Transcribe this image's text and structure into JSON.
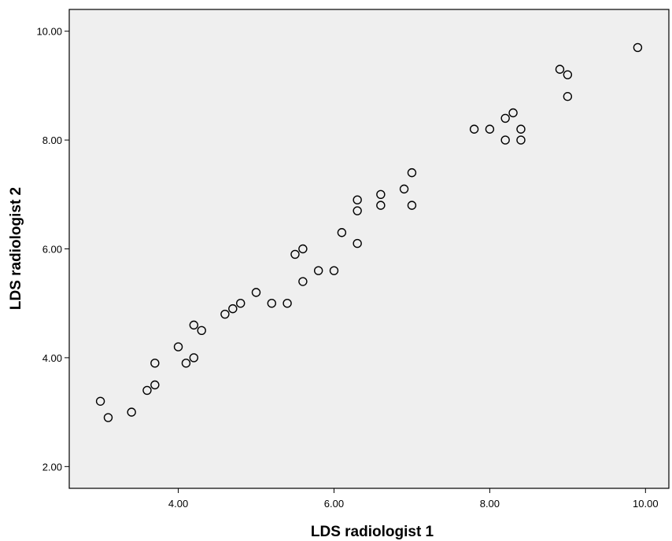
{
  "chart_data": {
    "type": "scatter",
    "title": "",
    "xlabel": "LDS radiologist 1",
    "ylabel": "LDS radiologist 2",
    "xlim": [
      2.6,
      10.3
    ],
    "ylim": [
      1.6,
      10.4
    ],
    "x_ticks": [
      {
        "value": 4,
        "label": "4.00"
      },
      {
        "value": 6,
        "label": "6.00"
      },
      {
        "value": 8,
        "label": "8.00"
      },
      {
        "value": 10,
        "label": "10.00"
      }
    ],
    "y_ticks": [
      {
        "value": 2,
        "label": "2.00"
      },
      {
        "value": 4,
        "label": "4.00"
      },
      {
        "value": 6,
        "label": "6.00"
      },
      {
        "value": 8,
        "label": "8.00"
      },
      {
        "value": 10,
        "label": "10.00"
      }
    ],
    "grid": false,
    "background_color": "#efefef",
    "marker": "open-circle",
    "marker_color": "#000000",
    "series": [
      {
        "points": [
          {
            "x": 3.0,
            "y": 3.2
          },
          {
            "x": 3.1,
            "y": 2.9
          },
          {
            "x": 3.4,
            "y": 3.0
          },
          {
            "x": 3.6,
            "y": 3.4
          },
          {
            "x": 3.7,
            "y": 3.5
          },
          {
            "x": 3.7,
            "y": 3.9
          },
          {
            "x": 4.0,
            "y": 4.2
          },
          {
            "x": 4.1,
            "y": 3.9
          },
          {
            "x": 4.2,
            "y": 4.0
          },
          {
            "x": 4.2,
            "y": 4.6
          },
          {
            "x": 4.3,
            "y": 4.5
          },
          {
            "x": 4.6,
            "y": 4.8
          },
          {
            "x": 4.7,
            "y": 4.9
          },
          {
            "x": 4.8,
            "y": 5.0
          },
          {
            "x": 5.0,
            "y": 5.2
          },
          {
            "x": 5.2,
            "y": 5.0
          },
          {
            "x": 5.4,
            "y": 5.0
          },
          {
            "x": 5.5,
            "y": 5.9
          },
          {
            "x": 5.6,
            "y": 6.0
          },
          {
            "x": 5.6,
            "y": 5.4
          },
          {
            "x": 5.8,
            "y": 5.6
          },
          {
            "x": 6.0,
            "y": 5.6
          },
          {
            "x": 6.1,
            "y": 6.3
          },
          {
            "x": 6.3,
            "y": 6.1
          },
          {
            "x": 6.3,
            "y": 6.7
          },
          {
            "x": 6.3,
            "y": 6.9
          },
          {
            "x": 6.6,
            "y": 7.0
          },
          {
            "x": 6.6,
            "y": 6.8
          },
          {
            "x": 6.9,
            "y": 7.1
          },
          {
            "x": 7.0,
            "y": 7.4
          },
          {
            "x": 7.0,
            "y": 6.8
          },
          {
            "x": 7.8,
            "y": 8.2
          },
          {
            "x": 8.0,
            "y": 8.2
          },
          {
            "x": 8.2,
            "y": 8.4
          },
          {
            "x": 8.2,
            "y": 8.0
          },
          {
            "x": 8.3,
            "y": 8.5
          },
          {
            "x": 8.4,
            "y": 8.2
          },
          {
            "x": 8.4,
            "y": 8.0
          },
          {
            "x": 8.9,
            "y": 9.3
          },
          {
            "x": 9.0,
            "y": 9.2
          },
          {
            "x": 9.0,
            "y": 8.8
          },
          {
            "x": 9.9,
            "y": 9.7
          }
        ]
      }
    ]
  }
}
